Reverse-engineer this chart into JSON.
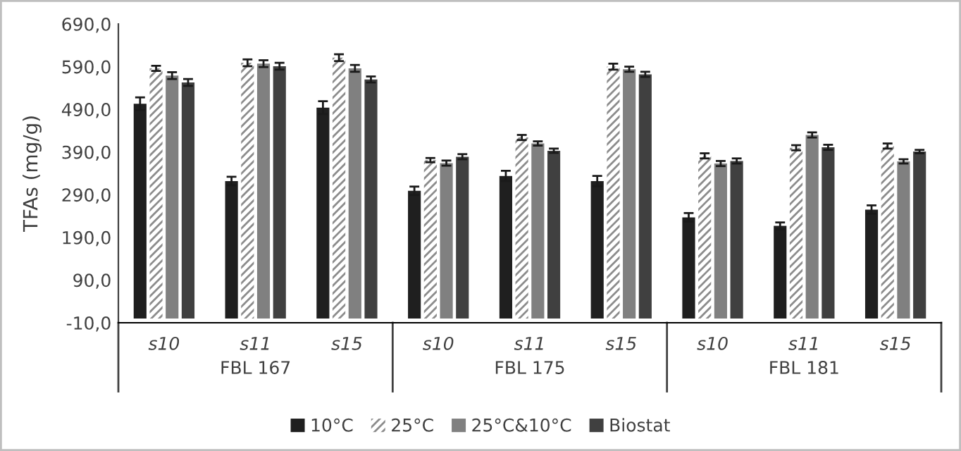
{
  "chart_data": {
    "type": "bar",
    "ylabel": "TFAs (mg/g)",
    "categories": [
      "s10",
      "s11",
      "s15",
      "s10",
      "s11",
      "s15",
      "s10",
      "s11",
      "s15"
    ],
    "annotations": [
      "FBL 167",
      "FBL 175",
      "FBL 181"
    ],
    "series": [
      {
        "name": "10°C",
        "color": "#1f1f1f",
        "values": [
          503,
          322,
          494,
          299,
          334,
          322,
          237,
          217,
          255
        ],
        "errors": [
          15,
          10,
          15,
          10,
          12,
          12,
          10,
          8,
          10
        ]
      },
      {
        "name": "25°C",
        "color": "#ffffff",
        "values": [
          586,
          599,
          611,
          371,
          424,
          590,
          381,
          400,
          404
        ],
        "errors": [
          6,
          8,
          8,
          5,
          6,
          7,
          6,
          6,
          6
        ]
      },
      {
        "name": "25°C&10°C",
        "color": "#808080",
        "values": [
          569,
          597,
          586,
          364,
          410,
          584,
          363,
          430,
          368
        ],
        "errors": [
          8,
          8,
          8,
          6,
          5,
          6,
          6,
          6,
          5
        ]
      },
      {
        "name": "Biostat",
        "color": "#404040",
        "values": [
          553,
          591,
          560,
          379,
          393,
          572,
          369,
          401,
          391
        ],
        "errors": [
          8,
          8,
          7,
          6,
          5,
          6,
          6,
          6,
          4
        ]
      }
    ],
    "ylim": [
      -10,
      690
    ],
    "yticks": [
      {
        "value": -10,
        "label": "-10,0"
      },
      {
        "value": 90,
        "label": "90,0"
      },
      {
        "value": 190,
        "label": "190,0"
      },
      {
        "value": 290,
        "label": "290,0"
      },
      {
        "value": 390,
        "label": "390,0"
      },
      {
        "value": 490,
        "label": "490,0"
      },
      {
        "value": 590,
        "label": "590,0"
      },
      {
        "value": 690,
        "label": "690,0"
      }
    ],
    "grid": false,
    "legend": "bottom"
  }
}
